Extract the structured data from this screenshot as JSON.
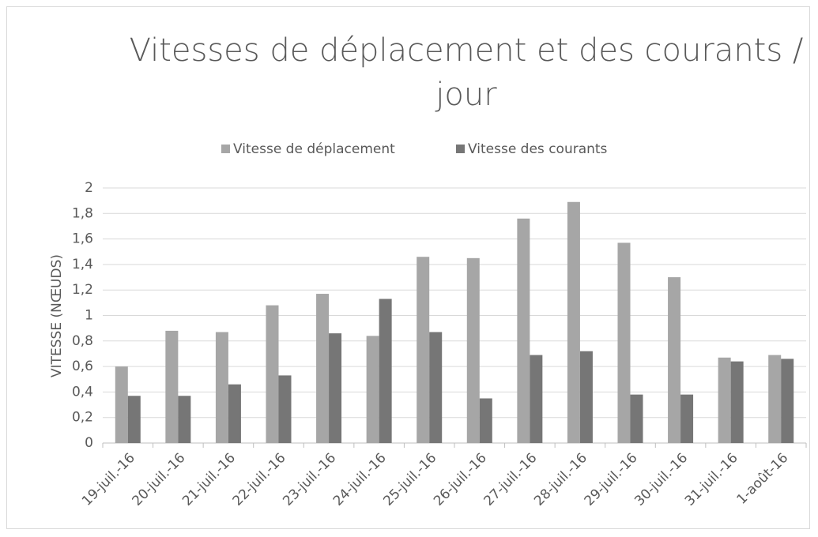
{
  "chart_data": {
    "type": "bar",
    "title": "Vitesses de déplacement et des courants / jour",
    "y_label": "VITESSE (NŒUDS)",
    "categories": [
      "19-juil.-16",
      "20-juil.-16",
      "21-juil.-16",
      "22-juil.-16",
      "23-juil.-16",
      "24-juil.-16",
      "25-juil.-16",
      "26-juil.-16",
      "27-juil.-16",
      "28-juil.-16",
      "29-juil.-16",
      "30-juil.-16",
      "31-juil.-16",
      "1-août-16"
    ],
    "series": [
      {
        "name": "Vitesse de déplacement",
        "color": "#a6a6a6",
        "values": [
          0.6,
          0.88,
          0.87,
          1.08,
          1.17,
          0.84,
          1.46,
          1.45,
          1.76,
          1.89,
          1.57,
          1.3,
          0.67,
          0.69
        ]
      },
      {
        "name": "Vitesse des courants",
        "color": "#767676",
        "values": [
          0.37,
          0.37,
          0.46,
          0.53,
          0.86,
          1.13,
          0.87,
          0.35,
          0.69,
          0.72,
          0.38,
          0.38,
          0.64,
          0.66
        ]
      }
    ],
    "ylim": [
      0,
      2
    ],
    "yticks": [
      0,
      {
        "value": 0.2,
        "label": "0,2"
      },
      {
        "value": 0.4,
        "label": "0,4"
      },
      {
        "value": 0.6,
        "label": "0,6"
      },
      {
        "value": 0.8,
        "label": "0,8"
      },
      1,
      {
        "value": 1.2,
        "label": "1,2"
      },
      {
        "value": 1.4,
        "label": "1,4"
      },
      {
        "value": 1.6,
        "label": "1,6"
      },
      {
        "value": 1.8,
        "label": "1,8"
      },
      2
    ],
    "grid": true,
    "legend": "top"
  }
}
